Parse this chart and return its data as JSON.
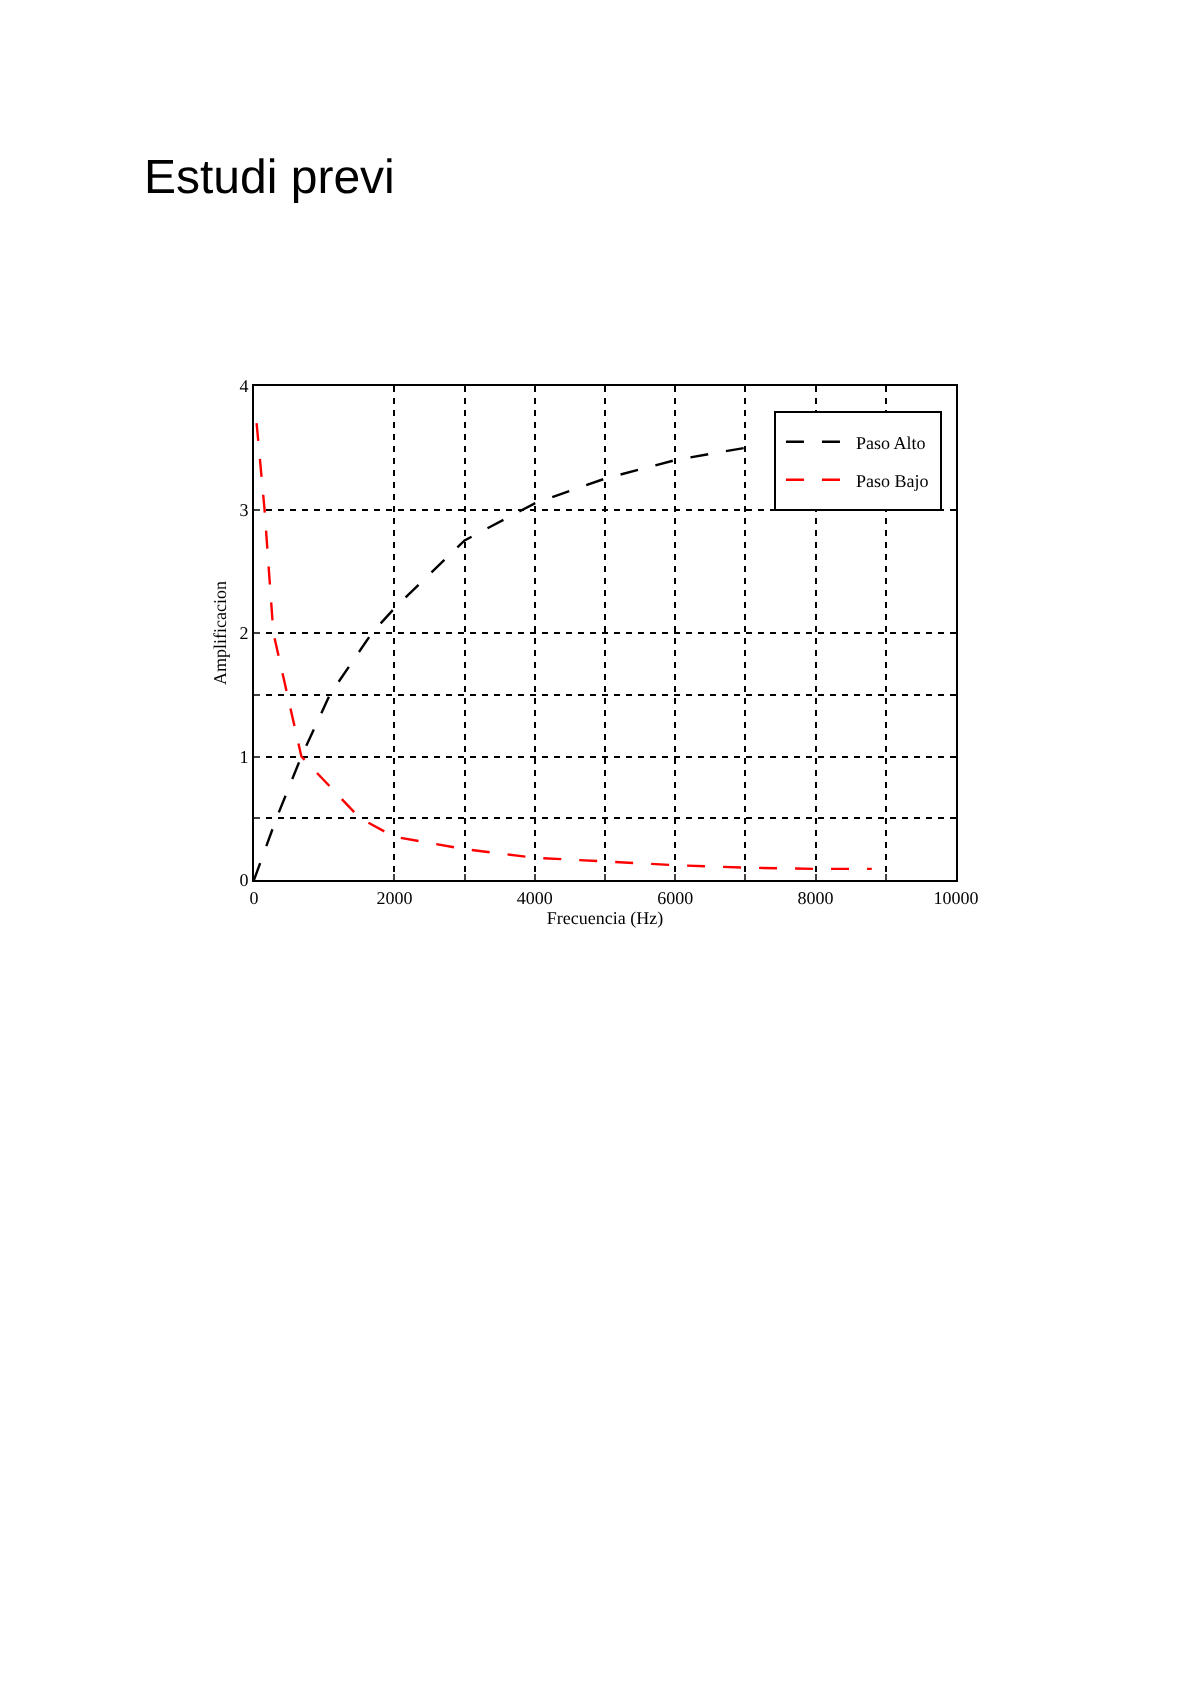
{
  "chart_data": {
    "type": "line",
    "title": "Estudi previ",
    "xlabel": "Frecuencia (Hz)",
    "ylabel": "Amplificacion",
    "xlim": [
      0,
      10000
    ],
    "ylim": [
      0,
      4
    ],
    "xticks": [
      0,
      2000,
      {
        "value": 3000,
        "label": null
      },
      4000,
      {
        "value": 5000,
        "label": null
      },
      6000,
      {
        "value": 7000,
        "label": null
      },
      8000,
      {
        "value": 9000,
        "label": null
      },
      10000
    ],
    "yticks": [
      0,
      {
        "value": 0.5,
        "label": null
      },
      1,
      {
        "value": 1.5,
        "label": null
      },
      2,
      3,
      4
    ],
    "grid": true,
    "legend": "top right",
    "line_style": "dashed",
    "series": [
      {
        "name": "Paso Alto",
        "color": "#000000",
        "x": [
          0,
          320,
          675,
          1080,
          1680,
          2000,
          3000,
          4000,
          5000,
          6000,
          7000
        ],
        "values": [
          0,
          0.5,
          1,
          1.5,
          2,
          2.2,
          2.75,
          3.05,
          3.25,
          3.4,
          3.5
        ]
      },
      {
        "name": "Paso Bajo",
        "color": "#ff0000",
        "x": [
          37,
          150,
          276,
          675,
          1510,
          2000,
          3000,
          4000,
          5000,
          6000,
          7000,
          8000,
          8800
        ],
        "values": [
          3.7,
          3,
          2,
          1,
          0.5,
          0.35,
          0.25,
          0.18,
          0.15,
          0.12,
          0.1,
          0.09,
          0.09
        ]
      }
    ]
  }
}
